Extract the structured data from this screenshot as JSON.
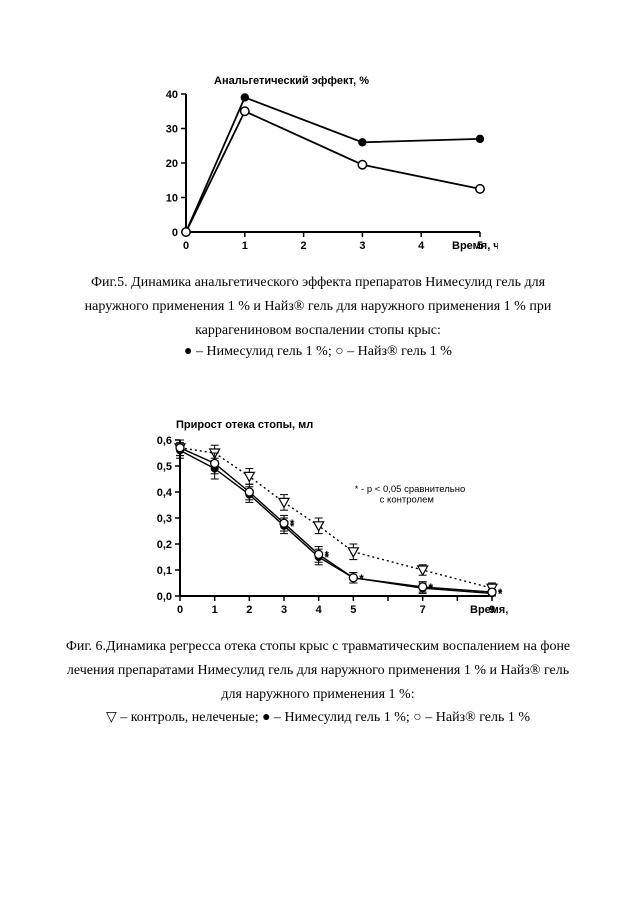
{
  "figure5": {
    "type": "line",
    "y_title": "Анальгетический эффект, %",
    "x_title": "Время, ч",
    "title_fontsize": 11,
    "label_fontsize": 11,
    "xlim": [
      0,
      5
    ],
    "ylim": [
      0,
      40
    ],
    "xticks": [
      0,
      1,
      2,
      3,
      4,
      5
    ],
    "yticks": [
      0,
      10,
      20,
      30,
      40
    ],
    "background_color": "#ffffff",
    "axis_color": "#000000",
    "line_width": 1.8,
    "series": [
      {
        "name": "Нимесулид гель 1 %",
        "marker": "filled-circle",
        "marker_size": 4.2,
        "marker_fill": "#000000",
        "line_color": "#000000",
        "x": [
          0,
          1,
          3,
          5
        ],
        "y": [
          0,
          39,
          26,
          27
        ]
      },
      {
        "name": "Найз гель 1 %",
        "marker": "open-circle",
        "marker_size": 4.2,
        "marker_fill": "#ffffff",
        "marker_stroke": "#000000",
        "line_color": "#000000",
        "x": [
          0,
          1,
          3,
          5
        ],
        "y": [
          0,
          35,
          19.5,
          12.5
        ]
      }
    ],
    "caption": "Фиг.5. Динамика анальгетического эффекта препаратов Нимесулид гель для наружного применения 1 % и Найз® гель для наружного применения 1 % при каррагениновом воспалении стопы крыс:",
    "legend_text": "● – Нимесулид гель 1 %; ○ – Найз® гель 1 %"
  },
  "figure6": {
    "type": "line",
    "y_title": "Прирост отека стопы, мл",
    "x_title": "Время, сутки",
    "title_fontsize": 11,
    "label_fontsize": 11,
    "xlim": [
      0,
      9
    ],
    "ylim": [
      0.0,
      0.6
    ],
    "xticks": [
      0,
      1,
      2,
      3,
      4,
      5,
      6,
      7,
      8,
      9
    ],
    "xtick_labels": [
      "0",
      "1",
      "2",
      "3",
      "4",
      "5",
      "",
      "7",
      "",
      "9"
    ],
    "yticks": [
      0.0,
      0.1,
      0.2,
      0.3,
      0.4,
      0.5,
      0.6
    ],
    "ytick_labels": [
      "0,0",
      "0,1",
      "0,2",
      "0,3",
      "0,4",
      "0,5",
      "0,6"
    ],
    "background_color": "#ffffff",
    "axis_color": "#000000",
    "annotation_text": "* - p < 0,05 сравнительно с контролем",
    "annotation_fontsize": 9.5,
    "error_bar_color": "#000000",
    "error_bar_cap": 4,
    "significance_marker": "*",
    "series": [
      {
        "name": "контроль, нелеченые",
        "marker": "open-triangle-down",
        "marker_size": 5,
        "marker_fill": "#ffffff",
        "marker_stroke": "#000000",
        "line_color": "#000000",
        "line_dash": "2,3",
        "x": [
          0,
          1,
          2,
          3,
          4,
          5,
          7,
          9
        ],
        "y": [
          0.57,
          0.55,
          0.46,
          0.36,
          0.27,
          0.17,
          0.1,
          0.03
        ],
        "err": [
          0.03,
          0.03,
          0.03,
          0.03,
          0.03,
          0.03,
          0.02,
          0.02
        ],
        "sig": [
          false,
          false,
          false,
          false,
          false,
          false,
          false,
          false
        ]
      },
      {
        "name": "Нимесулид гель 1 %",
        "marker": "filled-circle",
        "marker_size": 4,
        "marker_fill": "#000000",
        "line_color": "#000000",
        "line_dash": "",
        "x": [
          0,
          1,
          2,
          3,
          4,
          5,
          7,
          9
        ],
        "y": [
          0.56,
          0.49,
          0.39,
          0.27,
          0.15,
          0.07,
          0.03,
          0.01
        ],
        "err": [
          0.03,
          0.04,
          0.03,
          0.03,
          0.03,
          0.02,
          0.02,
          0.01
        ],
        "sig": [
          false,
          false,
          false,
          true,
          true,
          true,
          true,
          true
        ]
      },
      {
        "name": "Найз гель 1 %",
        "marker": "open-circle",
        "marker_size": 4,
        "marker_fill": "#ffffff",
        "marker_stroke": "#000000",
        "line_color": "#000000",
        "line_dash": "",
        "x": [
          0,
          1,
          2,
          3,
          4,
          5,
          7,
          9
        ],
        "y": [
          0.57,
          0.51,
          0.4,
          0.28,
          0.16,
          0.07,
          0.035,
          0.015
        ],
        "err": [
          0.03,
          0.04,
          0.03,
          0.03,
          0.03,
          0.02,
          0.02,
          0.01
        ],
        "sig": [
          false,
          false,
          false,
          true,
          true,
          true,
          true,
          true
        ]
      }
    ],
    "caption": "Фиг. 6.Динамика регресса отека стопы крыс с травматическим воспалением на фоне лечения препаратами Нимесулид гель для наружного применения 1 % и Найз® гель для наружного применения 1 %:",
    "legend_text": "▽ – контроль, нелеченые; ● – Нимесулид гель 1 %; ○ – Найз® гель 1 %"
  }
}
